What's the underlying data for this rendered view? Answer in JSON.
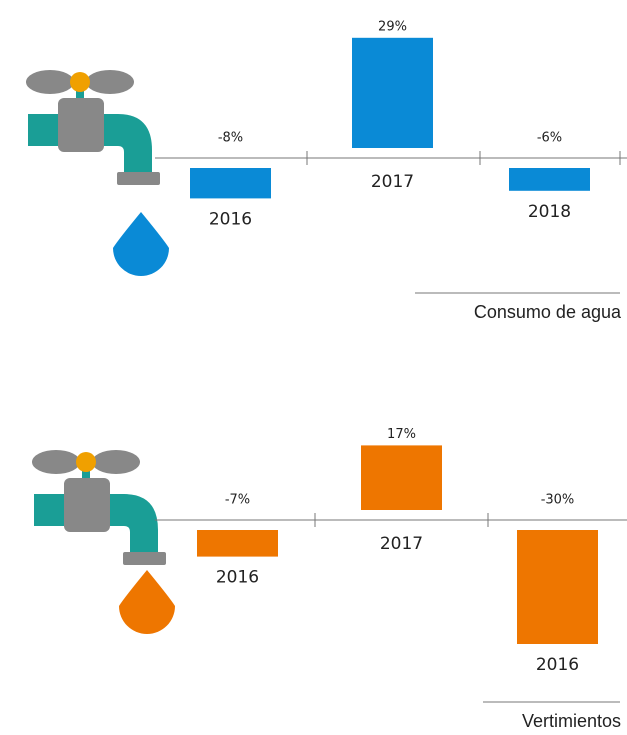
{
  "chart_data": [
    {
      "type": "bar",
      "categories": [
        "2016",
        "2017",
        "2018"
      ],
      "values": [
        -8,
        29,
        -6
      ],
      "value_labels": [
        "-8%",
        "29%",
        "-6%"
      ],
      "color": "#0a8ad6",
      "caption": "Consumo de agua"
    },
    {
      "type": "bar",
      "categories": [
        "2016",
        "2017",
        "2016"
      ],
      "values": [
        -7,
        17,
        -30
      ],
      "value_labels": [
        "-7%",
        "17%",
        "-30%"
      ],
      "color": "#ee7600",
      "caption": "Vertimientos"
    }
  ]
}
